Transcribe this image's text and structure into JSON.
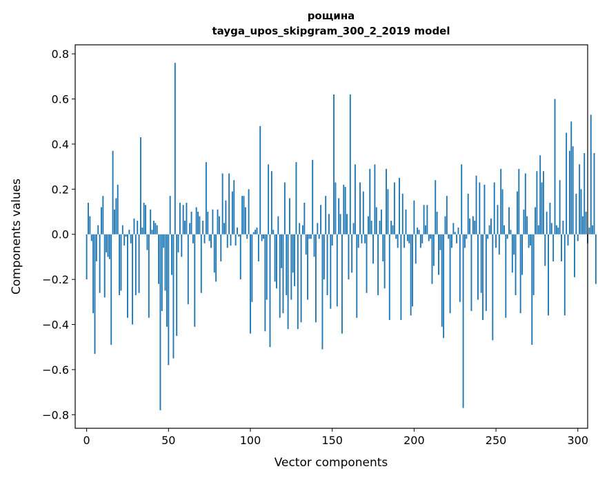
{
  "chart_data": {
    "type": "bar",
    "title": "рощина",
    "subtitle": "tayga_upos_skipgram_300_2_2019 model",
    "xlabel": "Vector components",
    "ylabel": "Components values",
    "xlim": [
      -7,
      306
    ],
    "ylim": [
      -0.86,
      0.84
    ],
    "xticks": [
      0,
      50,
      100,
      150,
      200,
      250,
      300
    ],
    "yticks": [
      -0.8,
      -0.6,
      -0.4,
      -0.2,
      0.0,
      0.2,
      0.4,
      0.6,
      0.8
    ],
    "ytick_labels": [
      "−0.8",
      "−0.6",
      "−0.4",
      "−0.2",
      "0.0",
      "0.2",
      "0.4",
      "0.6",
      "0.8"
    ],
    "xtick_labels": [
      "0",
      "50",
      "100",
      "150",
      "200",
      "250",
      "300"
    ],
    "bar_color": "#1f77b4",
    "grid": false,
    "values": [
      -0.2,
      0.14,
      0.08,
      -0.03,
      -0.35,
      -0.53,
      -0.12,
      0.04,
      -0.26,
      0.12,
      0.17,
      -0.28,
      -0.08,
      -0.1,
      -0.11,
      -0.49,
      0.37,
      0.11,
      0.16,
      0.22,
      -0.27,
      -0.25,
      0.04,
      -0.05,
      -0.01,
      -0.37,
      0.02,
      -0.04,
      -0.4,
      0.07,
      -0.27,
      0.06,
      -0.26,
      0.43,
      0.03,
      0.14,
      0.13,
      -0.07,
      -0.37,
      0.11,
      0.02,
      0.06,
      0.05,
      0.04,
      -0.22,
      -0.78,
      -0.34,
      -0.06,
      -0.25,
      -0.41,
      -0.58,
      0.17,
      -0.18,
      -0.55,
      0.76,
      -0.45,
      -0.08,
      0.14,
      -0.1,
      0.13,
      0.06,
      0.14,
      -0.31,
      0.05,
      0.1,
      -0.04,
      -0.41,
      0.12,
      0.1,
      0.08,
      -0.26,
      0.06,
      -0.04,
      0.32,
      0.1,
      -0.03,
      -0.06,
      0.11,
      -0.17,
      -0.21,
      0.11,
      0.08,
      -0.12,
      0.27,
      0.05,
      0.15,
      -0.06,
      0.27,
      -0.05,
      0.19,
      0.24,
      -0.05,
      0.03,
      -0.01,
      -0.2,
      0.17,
      0.17,
      0.12,
      -0.02,
      0.2,
      -0.44,
      -0.3,
      0.01,
      0.02,
      0.03,
      -0.12,
      0.48,
      -0.03,
      -0.02,
      -0.43,
      -0.29,
      0.31,
      -0.5,
      0.28,
      0.02,
      -0.21,
      -0.24,
      0.08,
      -0.37,
      -0.15,
      -0.35,
      0.23,
      -0.27,
      -0.42,
      0.16,
      -0.29,
      -0.17,
      -0.23,
      0.32,
      -0.42,
      0.05,
      -0.39,
      0.04,
      0.14,
      -0.09,
      -0.29,
      -0.02,
      -0.02,
      0.33,
      -0.1,
      -0.39,
      0.05,
      -0.02,
      0.13,
      -0.51,
      -0.2,
      0.17,
      -0.27,
      0.09,
      -0.33,
      -0.05,
      0.62,
      0.23,
      -0.32,
      0.16,
      0.09,
      -0.44,
      0.22,
      0.21,
      0.09,
      -0.2,
      0.62,
      -0.17,
      0.05,
      0.31,
      -0.37,
      -0.06,
      0.23,
      -0.04,
      0.19,
      -0.04,
      -0.26,
      0.08,
      0.29,
      0.06,
      -0.13,
      0.31,
      0.12,
      -0.27,
      0.06,
      0.11,
      -0.12,
      -0.24,
      0.29,
      0.2,
      -0.38,
      0.06,
      0.04,
      0.23,
      -0.02,
      -0.06,
      0.25,
      -0.38,
      0.18,
      -0.06,
      0.11,
      -0.03,
      -0.04,
      -0.36,
      -0.32,
      0.15,
      -0.13,
      0.03,
      0.02,
      -0.06,
      -0.04,
      0.13,
      0.04,
      0.13,
      -0.03,
      -0.02,
      -0.22,
      -0.14,
      0.24,
      0.1,
      -0.18,
      -0.07,
      -0.41,
      -0.46,
      0.08,
      0.17,
      -0.02,
      -0.35,
      -0.06,
      0.05,
      0.01,
      -0.04,
      0.03,
      -0.3,
      0.31,
      -0.77,
      -0.06,
      -0.02,
      0.18,
      0.07,
      -0.34,
      0.08,
      0.06,
      0.26,
      -0.29,
      0.23,
      -0.26,
      -0.38,
      0.22,
      -0.34,
      -0.02,
      0.04,
      0.07,
      -0.47,
      0.23,
      -0.06,
      0.13,
      -0.09,
      0.29,
      0.2,
      0.04,
      -0.37,
      -0.02,
      0.12,
      0.02,
      -0.17,
      -0.09,
      -0.27,
      0.19,
      0.29,
      -0.35,
      -0.18,
      0.11,
      0.27,
      0.08,
      -0.06,
      -0.05,
      -0.49,
      -0.27,
      0.12,
      0.28,
      0.04,
      0.35,
      0.23,
      0.28,
      -0.14,
      0.1,
      -0.36,
      0.14,
      0.05,
      -0.12,
      0.6,
      0.04,
      0.03,
      0.24,
      -0.12,
      0.06,
      -0.36,
      0.45,
      -0.05,
      0.37,
      0.5,
      0.39,
      -0.19,
      0.18,
      -0.03,
      0.31,
      0.2,
      0.08,
      0.36,
      0.1,
      -0.04,
      0.03,
      0.53,
      0.04,
      0.36,
      -0.22
    ]
  }
}
